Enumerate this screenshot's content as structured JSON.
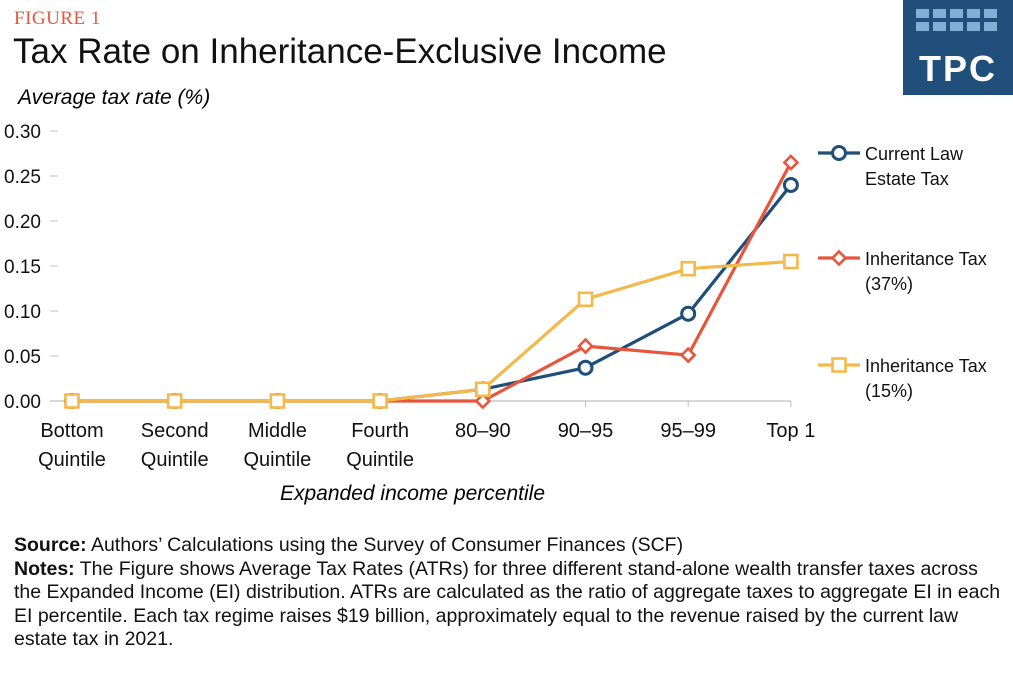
{
  "figure_label": "FIGURE 1",
  "logo_text": "TPC",
  "colors": {
    "current_law": "#1f4e79",
    "inheritance_37": "#e8553d",
    "inheritance_15": "#f5b84a",
    "figure_label": "#e8553d",
    "logo_bg": "#1f4f7a"
  },
  "chart_data": {
    "type": "line",
    "title": "Tax Rate on Inheritance-Exclusive Income",
    "ylabel": "Average tax rate (%)",
    "xlabel": "Expanded income percentile",
    "categories": [
      [
        "Bottom",
        "Quintile"
      ],
      [
        "Second",
        "Quintile"
      ],
      [
        "Middle",
        "Quintile"
      ],
      [
        "Fourth",
        "Quintile"
      ],
      [
        "80–90"
      ],
      [
        "90–95"
      ],
      [
        "95–99"
      ],
      [
        "Top 1"
      ]
    ],
    "ylim": [
      0,
      0.3
    ],
    "yticks": [
      "0.00",
      "0.05",
      "0.10",
      "0.15",
      "0.20",
      "0.25",
      "0.30"
    ],
    "series": [
      {
        "key": "current_law",
        "name_lines": [
          "Current Law",
          "Estate Tax"
        ],
        "marker": "circle",
        "values": [
          0.0,
          0.0,
          0.0,
          0.0,
          0.013,
          0.037,
          0.097,
          0.24
        ]
      },
      {
        "key": "inheritance_37",
        "name_lines": [
          "Inheritance Tax",
          "(37%)"
        ],
        "marker": "diamond",
        "values": [
          0.0,
          0.0,
          0.0,
          0.0,
          0.0,
          0.061,
          0.051,
          0.265
        ]
      },
      {
        "key": "inheritance_15",
        "name_lines": [
          "Inheritance Tax",
          "(15%)"
        ],
        "marker": "square",
        "values": [
          0.0,
          0.0,
          0.0,
          0.0,
          0.013,
          0.113,
          0.147,
          0.155
        ]
      }
    ]
  },
  "source": {
    "label": "Source:",
    "text": " Authors’ Calculations using the Survey of Consumer Finances (SCF)"
  },
  "notes": {
    "label": "Notes:",
    "text": " The Figure shows Average Tax Rates (ATRs) for three different stand-alone wealth transfer taxes across the Expanded Income (EI) distribution. ATRs are calculated as the ratio of aggregate taxes to aggregate EI in each EI percentile. Each tax regime raises $19 billion, approximately equal to the revenue raised by the current law estate tax in 2021."
  }
}
